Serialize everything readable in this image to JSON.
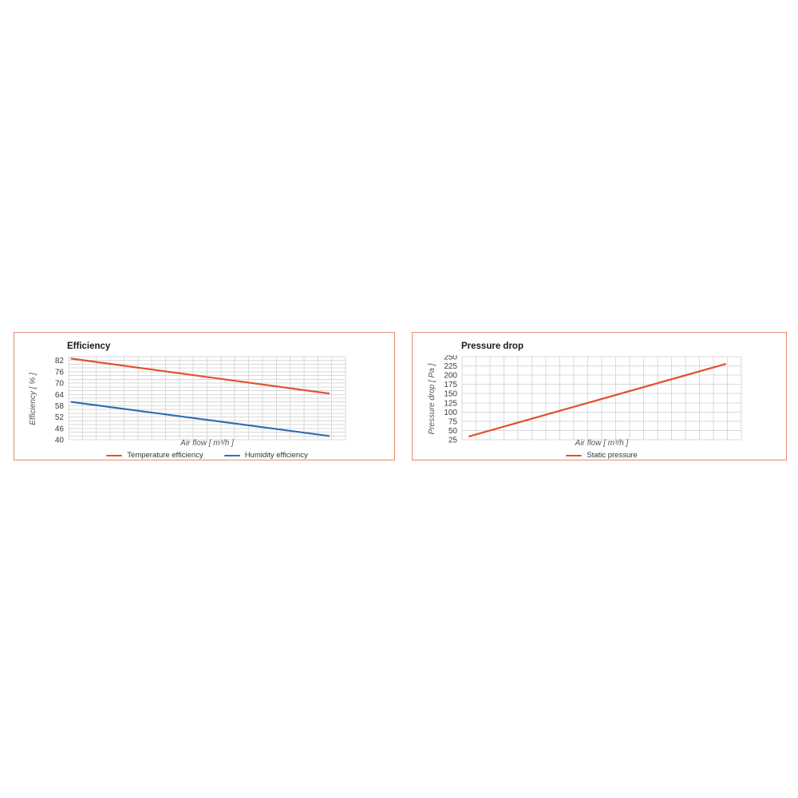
{
  "colors": {
    "background": "#ffffff",
    "panel_border": "#e58a70",
    "grid": "#d9d9d9",
    "series_red": "#e2512e",
    "series_blue": "#2e6db5",
    "tick_text": "#3d3d3d",
    "axis_title_text": "#555555",
    "chart_title_text": "#1a1a1a",
    "legend_text": "#333333"
  },
  "chart_data": [
    {
      "type": "line",
      "title": "Efficiency",
      "xlabel": "Air flow [ m³/h ]",
      "ylabel": "Efficiency [ % ]",
      "ylim": [
        40,
        84
      ],
      "yticks": [
        82,
        76,
        70,
        64,
        58,
        52,
        46,
        40
      ],
      "minor_y_step": 2,
      "x_tick_labels_visible": false,
      "x_normalized": true,
      "grid": true,
      "legend_position": "bottom",
      "series": [
        {
          "name": "Temperature efficiency",
          "color": "#e2512e",
          "points": [
            [
              0.01,
              83.0
            ],
            [
              0.94,
              64.5
            ]
          ]
        },
        {
          "name": "Humidity efficiency",
          "color": "#2e6db5",
          "points": [
            [
              0.01,
              60.0
            ],
            [
              0.94,
              42.0
            ]
          ]
        }
      ]
    },
    {
      "type": "line",
      "title": "Pressure drop",
      "xlabel": "Air flow [ m³/h ]",
      "ylabel": "Pressure drop [ Pa ]",
      "ylim": [
        25,
        250
      ],
      "yticks": [
        250,
        225,
        200,
        175,
        150,
        125,
        100,
        75,
        50,
        25
      ],
      "minor_y_step": 25,
      "x_tick_labels_visible": false,
      "x_normalized": true,
      "grid": true,
      "legend_position": "bottom",
      "series": [
        {
          "name": "Static pressure",
          "color": "#e2512e",
          "points": [
            [
              0.026,
              34.0
            ],
            [
              0.943,
              230.0
            ]
          ]
        }
      ]
    }
  ]
}
